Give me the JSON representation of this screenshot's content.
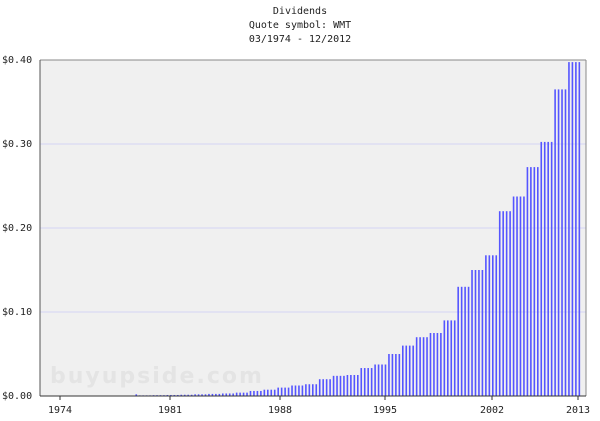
{
  "chart_data": {
    "type": "bar",
    "title": "Dividends",
    "subtitle": "Quote symbol: WMT",
    "date_range": "03/1974 - 12/2012",
    "watermark": "buyupside.com",
    "ylabel": "",
    "xlabel": "",
    "ylim": [
      0,
      0.4
    ],
    "y_ticks": [
      "$0.00",
      "$0.10",
      "$0.20",
      "$0.30",
      "$0.40"
    ],
    "x_ticks": [
      "1974",
      "1981",
      "1988",
      "1995",
      "2002",
      "2013"
    ],
    "grid": "horizontal",
    "bar_color": "#5555ff",
    "plot_background": "#f0f0f0",
    "years": [
      1974,
      1975,
      1976,
      1977,
      1978,
      1979,
      1980,
      1981,
      1982,
      1983,
      1984,
      1985,
      1986,
      1987,
      1988,
      1989,
      1990,
      1991,
      1992,
      1993,
      1994,
      1995,
      1996,
      1997,
      1998,
      1999,
      2000,
      2001,
      2002,
      2003,
      2004,
      2005,
      2006,
      2007,
      2008,
      2009,
      2010,
      2011,
      2012
    ],
    "quarterly_values": [
      [
        0.0003,
        0.0003,
        0.0003,
        0.0003
      ],
      [
        0.0003,
        0.0003,
        0.0003,
        0.0003
      ],
      [
        0.0003,
        0.0003,
        0.0003,
        0.0003
      ],
      [
        0.0004,
        0.0004,
        0.0004,
        0.0004
      ],
      [
        0.0004,
        0.0004,
        0.0004,
        0.0004
      ],
      [
        0.0004,
        0.0004,
        0.0004,
        0.0004
      ],
      [
        0.0005,
        0.0005,
        0.0005,
        0.002
      ],
      [
        0.0008,
        0.0008,
        0.0008,
        0.0008
      ],
      [
        0.001,
        0.001,
        0.001,
        0.001
      ],
      [
        0.0012,
        0.0012,
        0.0012,
        0.0012
      ],
      [
        0.0015,
        0.0015,
        0.0015,
        0.0015
      ],
      [
        0.002,
        0.002,
        0.002,
        0.002
      ],
      [
        0.0025,
        0.0025,
        0.0025,
        0.0025
      ],
      [
        0.003,
        0.003,
        0.003,
        0.003
      ],
      [
        0.004,
        0.004,
        0.004,
        0.004
      ],
      [
        0.006,
        0.006,
        0.006,
        0.006
      ],
      [
        0.0075,
        0.0075,
        0.0075,
        0.0075
      ],
      [
        0.01,
        0.01,
        0.01,
        0.01
      ],
      [
        0.0125,
        0.0125,
        0.0125,
        0.0125
      ],
      [
        0.014,
        0.014,
        0.014,
        0.014
      ],
      [
        0.02,
        0.02,
        0.02,
        0.02
      ],
      [
        0.024,
        0.024,
        0.024,
        0.024
      ],
      [
        0.025,
        0.025,
        0.025,
        0.025
      ],
      [
        0.0333,
        0.0333,
        0.0333,
        0.0333
      ],
      [
        0.0375,
        0.0375,
        0.0375,
        0.0375
      ],
      [
        0.05,
        0.05,
        0.05,
        0.05
      ],
      [
        0.06,
        0.06,
        0.06,
        0.06
      ],
      [
        0.07,
        0.07,
        0.07,
        0.07
      ],
      [
        0.075,
        0.075,
        0.075,
        0.075
      ],
      [
        0.09,
        0.09,
        0.09,
        0.09
      ],
      [
        0.13,
        0.13,
        0.13,
        0.13
      ],
      [
        0.15,
        0.15,
        0.15,
        0.15
      ],
      [
        0.1675,
        0.1675,
        0.1675,
        0.1675
      ],
      [
        0.22,
        0.22,
        0.22,
        0.22
      ],
      [
        0.2375,
        0.2375,
        0.2375,
        0.2375
      ],
      [
        0.2725,
        0.2725,
        0.2725,
        0.2725
      ],
      [
        0.3025,
        0.3025,
        0.3025,
        0.3025
      ],
      [
        0.365,
        0.365,
        0.365,
        0.365
      ],
      [
        0.3975,
        0.3975,
        0.3975,
        0.3975
      ]
    ]
  }
}
